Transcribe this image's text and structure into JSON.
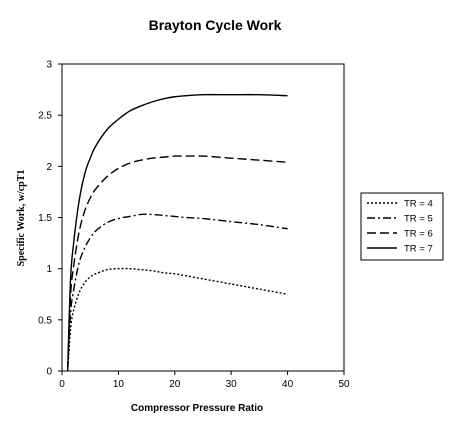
{
  "chart_data": {
    "type": "line",
    "title": "Brayton Cycle Work",
    "xlabel": "Compressor Pressure Ratio",
    "ylabel": "Specific Work, w/cpT1",
    "xlim": [
      0,
      50
    ],
    "ylim": [
      0,
      3
    ],
    "xticks": [
      0,
      10,
      20,
      30,
      40,
      50
    ],
    "yticks": [
      0,
      0.5,
      1,
      1.5,
      2,
      2.5,
      3
    ],
    "grid": false,
    "legend_position": "right",
    "x": [
      1,
      1.5,
      2,
      3,
      4,
      5,
      6,
      8,
      10,
      12,
      14,
      16,
      18,
      20,
      22,
      25,
      30,
      35,
      40
    ],
    "series": [
      {
        "name": "TR = 4",
        "style": "dotted",
        "values": [
          0,
          0.4,
          0.58,
          0.76,
          0.86,
          0.92,
          0.95,
          0.99,
          1.0,
          1.0,
          0.99,
          0.98,
          0.96,
          0.95,
          0.93,
          0.9,
          0.85,
          0.8,
          0.75
        ]
      },
      {
        "name": "TR = 5",
        "style": "dash-dot",
        "values": [
          0,
          0.55,
          0.77,
          1.05,
          1.2,
          1.3,
          1.37,
          1.45,
          1.49,
          1.51,
          1.53,
          1.53,
          1.52,
          1.51,
          1.5,
          1.49,
          1.46,
          1.43,
          1.39
        ]
      },
      {
        "name": "TR = 6",
        "style": "dashed",
        "values": [
          0,
          0.72,
          1.0,
          1.35,
          1.56,
          1.69,
          1.78,
          1.9,
          1.98,
          2.03,
          2.06,
          2.08,
          2.09,
          2.1,
          2.1,
          2.1,
          2.08,
          2.06,
          2.04
        ]
      },
      {
        "name": "TR = 7",
        "style": "solid",
        "values": [
          0,
          0.88,
          1.22,
          1.65,
          1.92,
          2.08,
          2.2,
          2.36,
          2.46,
          2.54,
          2.59,
          2.63,
          2.66,
          2.68,
          2.69,
          2.7,
          2.7,
          2.7,
          2.69
        ]
      }
    ]
  }
}
